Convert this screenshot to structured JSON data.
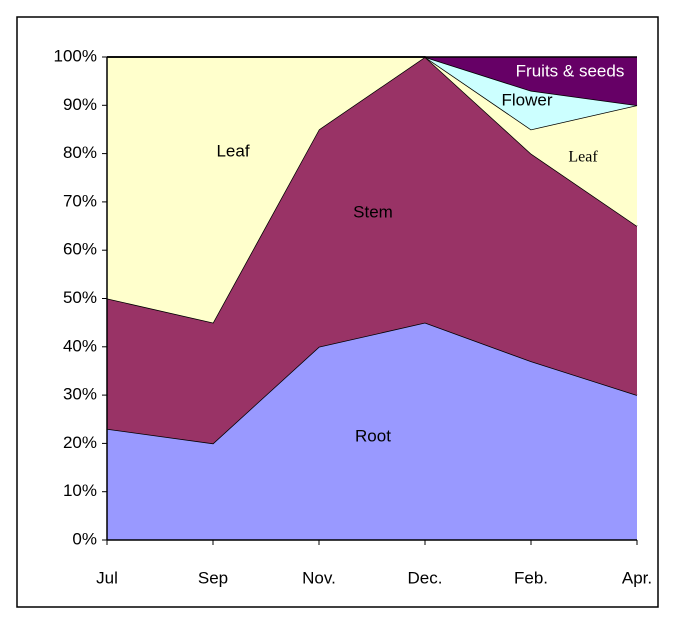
{
  "chart_data": {
    "type": "stacked_area",
    "categories": [
      "Jul",
      "Sep",
      "Nov.",
      "Dec.",
      "Feb.",
      "Apr."
    ],
    "series": [
      {
        "name": "Root",
        "color": "#9999ff",
        "values": [
          23,
          20,
          40,
          45,
          37,
          30
        ]
      },
      {
        "name": "Stem",
        "color": "#993366",
        "values": [
          27,
          25,
          45,
          55,
          43,
          35
        ]
      },
      {
        "name": "Leaf",
        "color": "#ffffcc",
        "values": [
          50,
          55,
          15,
          0,
          5,
          25
        ]
      },
      {
        "name": "Flower",
        "color": "#ccffff",
        "values": [
          0,
          0,
          0,
          0,
          8,
          0
        ]
      },
      {
        "name": "Fruits & seeds",
        "color": "#660066",
        "values": [
          0,
          0,
          0,
          0,
          7,
          10
        ]
      }
    ],
    "annotations": [
      "Leaf"
    ],
    "ylim": [
      0,
      100
    ],
    "yticks": [
      {
        "value": 0,
        "label": "0%"
      },
      {
        "value": 10,
        "label": "10%"
      },
      {
        "value": 20,
        "label": "20%"
      },
      {
        "value": 30,
        "label": "30%"
      },
      {
        "value": 40,
        "label": "40%"
      },
      {
        "value": 50,
        "label": "50%"
      },
      {
        "value": 60,
        "label": "60%"
      },
      {
        "value": 70,
        "label": "70%"
      },
      {
        "value": 80,
        "label": "80%"
      },
      {
        "value": 90,
        "label": "90%"
      },
      {
        "value": 100,
        "label": "100%"
      }
    ],
    "grid": false
  }
}
